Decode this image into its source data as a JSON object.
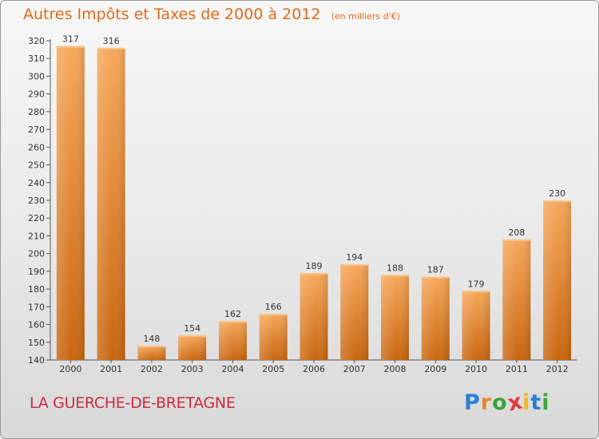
{
  "chart_data": {
    "type": "bar",
    "title": "Autres Impôts et Taxes de 2000 à 2012",
    "subtitle": "(en milliers d'€)",
    "categories": [
      "2000",
      "2001",
      "2002",
      "2003",
      "2004",
      "2005",
      "2006",
      "2007",
      "2008",
      "2009",
      "2010",
      "2011",
      "2012"
    ],
    "values": [
      317,
      316,
      148,
      154,
      162,
      166,
      189,
      194,
      188,
      187,
      179,
      208,
      230
    ],
    "data_labels": [
      "317",
      "316",
      "148",
      "154",
      "162",
      "166",
      "189",
      "194",
      "188",
      "187",
      "179",
      "208",
      "230"
    ],
    "y_ticks": [
      "140",
      "150",
      "160",
      "170",
      "180",
      "190",
      "200",
      "210",
      "220",
      "230",
      "240",
      "250",
      "260",
      "270",
      "280",
      "290",
      "300",
      "310",
      "320"
    ],
    "ylim": [
      140,
      320
    ],
    "xlabel": "",
    "ylabel": "",
    "grid": false,
    "bar_color": "#e8872c",
    "bar_color_dark": "#c9660f",
    "bar_color_light": "#f6a85a"
  },
  "footer": {
    "place_name": "LA GUERCHE-DE-BRETAGNE",
    "brand": {
      "letters": [
        "P",
        "r",
        "o",
        "x",
        "i",
        "t",
        "i"
      ],
      "colors": [
        "#2a7fd4",
        "#e8872c",
        "#3aa53a",
        "#e23a3a",
        "#f2b61c",
        "#2a7fd4",
        "#3aa53a"
      ]
    }
  }
}
